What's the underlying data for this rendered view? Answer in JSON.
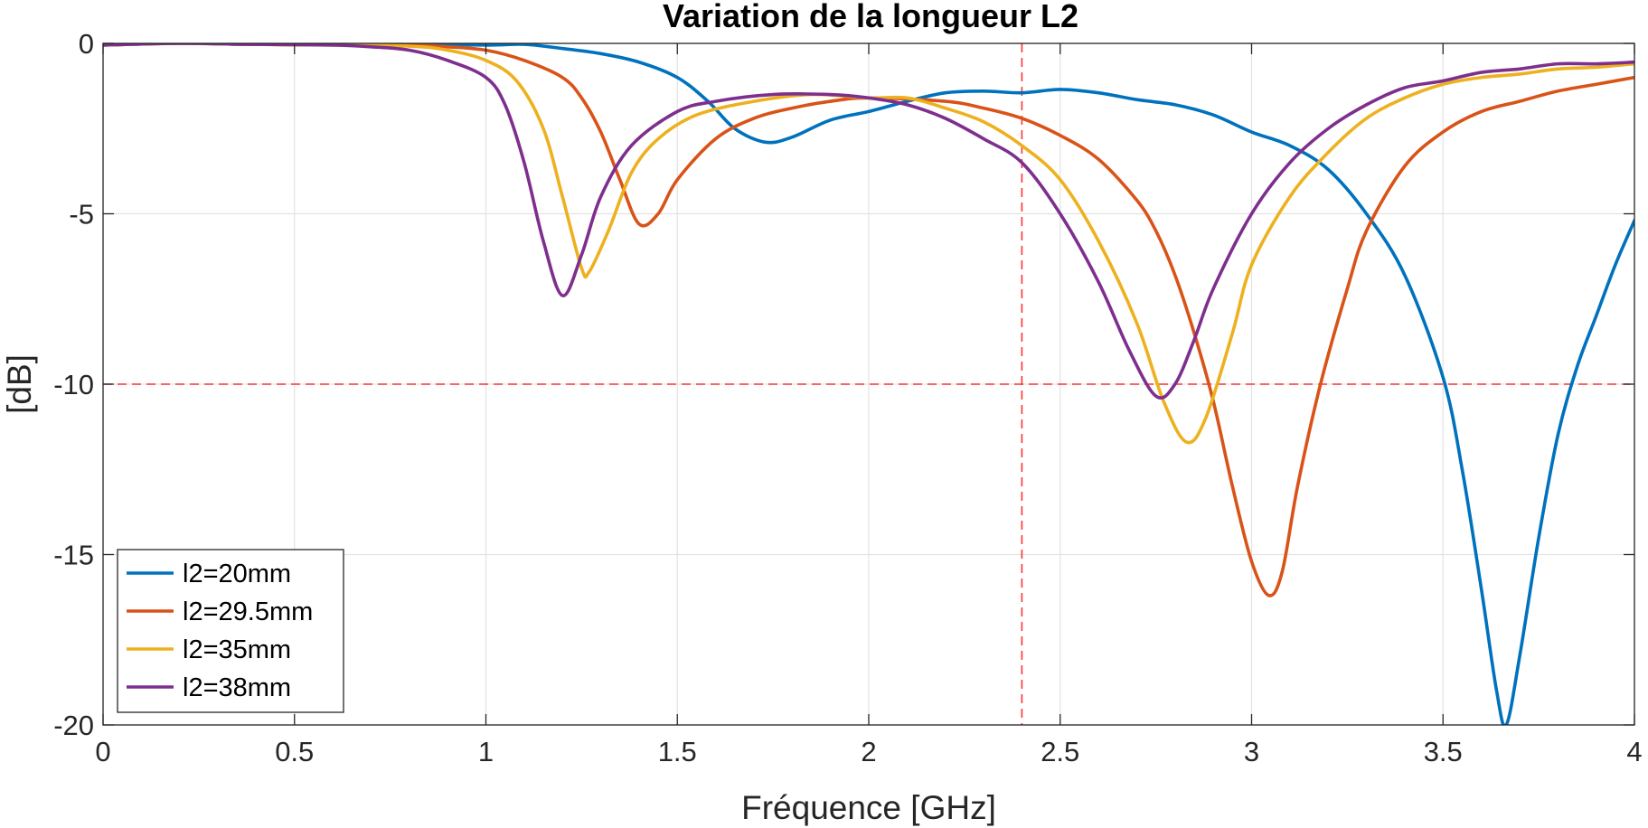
{
  "chart_data": {
    "type": "line",
    "title": "Variation de la longueur L2",
    "xlabel": "Fréquence [GHz]",
    "ylabel": "[dB]",
    "xlim": [
      0,
      4
    ],
    "ylim": [
      -20,
      0
    ],
    "xticks": [
      0,
      0.5,
      1,
      1.5,
      2,
      2.5,
      3,
      3.5,
      4
    ],
    "xtick_labels": [
      "0",
      "0.5",
      "1",
      "1.5",
      "2",
      "2.5",
      "3",
      "3.5",
      "4"
    ],
    "yticks": [
      0,
      -5,
      -10,
      -15,
      -20
    ],
    "ytick_labels": [
      "0",
      "-5",
      "-10",
      "-15",
      "-20"
    ],
    "grid": true,
    "legend_position": "bottom-left",
    "reference_lines": [
      {
        "orientation": "vertical",
        "x": 2.4,
        "color": "#ff3333",
        "style": "dashed"
      },
      {
        "orientation": "horizontal",
        "y": -10,
        "color": "#ff3333",
        "style": "dashed"
      }
    ],
    "series": [
      {
        "name": "l2=20mm",
        "color": "#0072BD",
        "points": [
          [
            0,
            -0.05
          ],
          [
            0.2,
            0
          ],
          [
            0.4,
            -0.03
          ],
          [
            0.6,
            0
          ],
          [
            0.8,
            0
          ],
          [
            1.0,
            -0.05
          ],
          [
            1.1,
            -0.03
          ],
          [
            1.2,
            -0.15
          ],
          [
            1.3,
            -0.3
          ],
          [
            1.4,
            -0.55
          ],
          [
            1.5,
            -1.0
          ],
          [
            1.58,
            -1.7
          ],
          [
            1.65,
            -2.5
          ],
          [
            1.73,
            -2.9
          ],
          [
            1.8,
            -2.75
          ],
          [
            1.9,
            -2.25
          ],
          [
            2.0,
            -2.0
          ],
          [
            2.1,
            -1.7
          ],
          [
            2.2,
            -1.45
          ],
          [
            2.3,
            -1.4
          ],
          [
            2.4,
            -1.45
          ],
          [
            2.5,
            -1.35
          ],
          [
            2.6,
            -1.45
          ],
          [
            2.7,
            -1.65
          ],
          [
            2.8,
            -1.8
          ],
          [
            2.9,
            -2.1
          ],
          [
            3.0,
            -2.6
          ],
          [
            3.1,
            -3.0
          ],
          [
            3.2,
            -3.7
          ],
          [
            3.3,
            -5.0
          ],
          [
            3.4,
            -6.8
          ],
          [
            3.5,
            -9.8
          ],
          [
            3.55,
            -12.5
          ],
          [
            3.6,
            -16.0
          ],
          [
            3.64,
            -19.0
          ],
          [
            3.665,
            -20.0
          ],
          [
            3.7,
            -18.0
          ],
          [
            3.75,
            -14.5
          ],
          [
            3.8,
            -11.5
          ],
          [
            3.85,
            -9.5
          ],
          [
            3.9,
            -8.0
          ],
          [
            3.95,
            -6.5
          ],
          [
            4.0,
            -5.2
          ]
        ]
      },
      {
        "name": "l2=29.5mm",
        "color": "#D95319",
        "points": [
          [
            0,
            -0.05
          ],
          [
            0.2,
            0
          ],
          [
            0.4,
            -0.03
          ],
          [
            0.6,
            -0.05
          ],
          [
            0.8,
            -0.05
          ],
          [
            0.9,
            -0.1
          ],
          [
            1.0,
            -0.2
          ],
          [
            1.1,
            -0.5
          ],
          [
            1.2,
            -1.0
          ],
          [
            1.25,
            -1.6
          ],
          [
            1.3,
            -2.6
          ],
          [
            1.35,
            -4.0
          ],
          [
            1.4,
            -5.3
          ],
          [
            1.45,
            -5.0
          ],
          [
            1.5,
            -4.0
          ],
          [
            1.6,
            -2.8
          ],
          [
            1.7,
            -2.2
          ],
          [
            1.8,
            -1.9
          ],
          [
            1.9,
            -1.7
          ],
          [
            2.0,
            -1.6
          ],
          [
            2.2,
            -1.7
          ],
          [
            2.3,
            -1.9
          ],
          [
            2.4,
            -2.2
          ],
          [
            2.5,
            -2.7
          ],
          [
            2.6,
            -3.4
          ],
          [
            2.7,
            -4.6
          ],
          [
            2.75,
            -5.5
          ],
          [
            2.8,
            -6.8
          ],
          [
            2.85,
            -8.5
          ],
          [
            2.9,
            -10.5
          ],
          [
            2.95,
            -13.0
          ],
          [
            3.0,
            -15.2
          ],
          [
            3.045,
            -16.2
          ],
          [
            3.08,
            -15.5
          ],
          [
            3.12,
            -13.0
          ],
          [
            3.18,
            -10.0
          ],
          [
            3.25,
            -7.2
          ],
          [
            3.3,
            -5.5
          ],
          [
            3.4,
            -3.6
          ],
          [
            3.5,
            -2.6
          ],
          [
            3.6,
            -2.0
          ],
          [
            3.7,
            -1.7
          ],
          [
            3.8,
            -1.4
          ],
          [
            3.9,
            -1.2
          ],
          [
            4.0,
            -1.0
          ]
        ]
      },
      {
        "name": "l2=35mm",
        "color": "#EDB120",
        "points": [
          [
            0,
            -0.05
          ],
          [
            0.2,
            0
          ],
          [
            0.4,
            -0.03
          ],
          [
            0.6,
            -0.05
          ],
          [
            0.8,
            -0.08
          ],
          [
            0.9,
            -0.2
          ],
          [
            1.0,
            -0.5
          ],
          [
            1.08,
            -1.1
          ],
          [
            1.15,
            -2.5
          ],
          [
            1.2,
            -4.5
          ],
          [
            1.25,
            -6.6
          ],
          [
            1.27,
            -6.7
          ],
          [
            1.32,
            -5.5
          ],
          [
            1.38,
            -3.8
          ],
          [
            1.45,
            -2.8
          ],
          [
            1.55,
            -2.1
          ],
          [
            1.7,
            -1.7
          ],
          [
            1.85,
            -1.5
          ],
          [
            2.0,
            -1.6
          ],
          [
            2.1,
            -1.6
          ],
          [
            2.2,
            -1.9
          ],
          [
            2.3,
            -2.3
          ],
          [
            2.4,
            -3.0
          ],
          [
            2.5,
            -4.0
          ],
          [
            2.6,
            -5.8
          ],
          [
            2.7,
            -8.2
          ],
          [
            2.77,
            -10.5
          ],
          [
            2.83,
            -11.7
          ],
          [
            2.88,
            -11.0
          ],
          [
            2.95,
            -8.5
          ],
          [
            3.0,
            -6.5
          ],
          [
            3.1,
            -4.5
          ],
          [
            3.2,
            -3.2
          ],
          [
            3.3,
            -2.2
          ],
          [
            3.4,
            -1.6
          ],
          [
            3.5,
            -1.2
          ],
          [
            3.6,
            -1.0
          ],
          [
            3.7,
            -0.9
          ],
          [
            3.8,
            -0.75
          ],
          [
            3.9,
            -0.7
          ],
          [
            4.0,
            -0.6
          ]
        ]
      },
      {
        "name": "l2=38mm",
        "color": "#7E2F8E",
        "points": [
          [
            0,
            -0.05
          ],
          [
            0.2,
            0
          ],
          [
            0.4,
            -0.03
          ],
          [
            0.6,
            -0.05
          ],
          [
            0.7,
            -0.1
          ],
          [
            0.8,
            -0.2
          ],
          [
            0.9,
            -0.5
          ],
          [
            1.0,
            -1.0
          ],
          [
            1.05,
            -1.8
          ],
          [
            1.1,
            -3.5
          ],
          [
            1.15,
            -5.8
          ],
          [
            1.2,
            -7.4
          ],
          [
            1.25,
            -6.2
          ],
          [
            1.3,
            -4.5
          ],
          [
            1.38,
            -3.0
          ],
          [
            1.5,
            -2.0
          ],
          [
            1.6,
            -1.7
          ],
          [
            1.75,
            -1.5
          ],
          [
            1.9,
            -1.5
          ],
          [
            2.0,
            -1.6
          ],
          [
            2.1,
            -1.8
          ],
          [
            2.2,
            -2.2
          ],
          [
            2.3,
            -2.8
          ],
          [
            2.4,
            -3.5
          ],
          [
            2.5,
            -5.0
          ],
          [
            2.6,
            -7.0
          ],
          [
            2.68,
            -9.0
          ],
          [
            2.75,
            -10.35
          ],
          [
            2.8,
            -10.0
          ],
          [
            2.85,
            -8.7
          ],
          [
            2.9,
            -7.2
          ],
          [
            3.0,
            -5.0
          ],
          [
            3.1,
            -3.5
          ],
          [
            3.2,
            -2.5
          ],
          [
            3.3,
            -1.8
          ],
          [
            3.4,
            -1.3
          ],
          [
            3.5,
            -1.1
          ],
          [
            3.6,
            -0.85
          ],
          [
            3.7,
            -0.75
          ],
          [
            3.8,
            -0.6
          ],
          [
            3.9,
            -0.6
          ],
          [
            4.0,
            -0.55
          ]
        ]
      }
    ]
  }
}
